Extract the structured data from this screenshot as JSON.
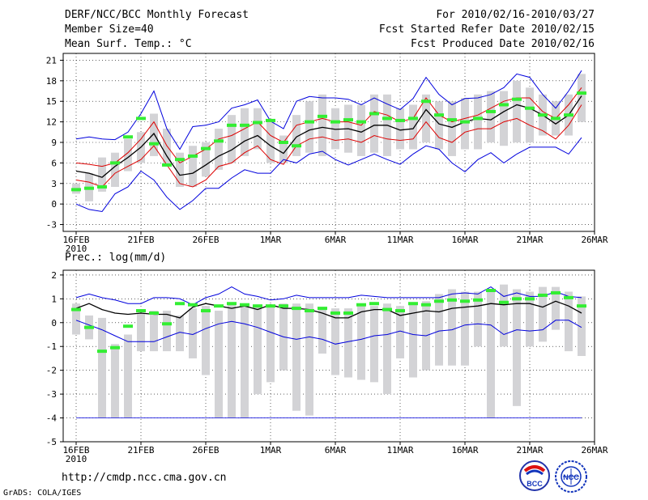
{
  "header": {
    "title": "DERF/NCC/BCC Monthly Forecast",
    "member": "Member Size=40",
    "variable": "Mean Surf. Temp.: °C",
    "period": "For 2010/02/16-2010/03/27",
    "started": "Fcst Started Refer Date 2010/02/15",
    "produced": "Fcst Produced Date 2010/02/16"
  },
  "footer": {
    "url": "http://cmdp.ncc.cma.gov.cn",
    "grads": "GrADS: COLA/IGES",
    "logo1": "BCC",
    "logo2": "NCC"
  },
  "colors": {
    "max_min": "#0000dd",
    "spread": "#dd0000",
    "mean": "#000000",
    "bar": "#d3d3d6",
    "obs": "#33ee33",
    "grid": "#000000"
  },
  "chart_data": [
    {
      "type": "line",
      "title": "Mean Surf. Temp.: °C",
      "x_tick_labels": [
        "16FEB",
        "21FEB",
        "26FEB",
        "1MAR",
        "6MAR",
        "11MAR",
        "16MAR",
        "21MAR",
        "26MAR"
      ],
      "x_year_label": "2010",
      "days": 40,
      "ylim": [
        -4,
        22
      ],
      "yticks": [
        -3,
        0,
        3,
        6,
        9,
        12,
        15,
        18,
        21
      ],
      "series": [
        {
          "name": "max",
          "values": [
            9.5,
            9.8,
            9.5,
            9.4,
            10.5,
            13.2,
            16.5,
            11,
            8,
            11.3,
            11.5,
            12,
            14,
            14.5,
            15.2,
            12.1,
            11,
            15,
            15.7,
            15.5,
            15.5,
            15.3,
            14.5,
            15.5,
            14.6,
            13.8,
            15.4,
            18.5,
            16,
            14.5,
            15.4,
            15.5,
            16,
            17,
            19,
            18.5,
            16,
            14,
            16.5,
            19.5
          ]
        },
        {
          "name": "spread_upper",
          "values": [
            6,
            5.8,
            5.5,
            6,
            7.5,
            9.5,
            12,
            8.5,
            6,
            7,
            8,
            9.5,
            10,
            11,
            12,
            10,
            9,
            11.5,
            12,
            12.5,
            12,
            12,
            11.5,
            13.5,
            13,
            12,
            12.5,
            15.5,
            13,
            12,
            12.5,
            13,
            14,
            15,
            15.5,
            15.5,
            13.5,
            12.5,
            14.5,
            17
          ]
        },
        {
          "name": "mean",
          "values": [
            4.8,
            4.5,
            3.9,
            5.5,
            6.8,
            8.3,
            10.3,
            7,
            4.2,
            4.5,
            5.7,
            7,
            7.9,
            9.2,
            10,
            8.5,
            7.4,
            9.8,
            10.8,
            11.2,
            10.9,
            11,
            10.5,
            11.5,
            11.5,
            10.8,
            11,
            13.8,
            11.7,
            11.2,
            12,
            12.5,
            12.3,
            13.5,
            14.5,
            14,
            13,
            11.7,
            13,
            15.8
          ]
        },
        {
          "name": "spread_lower",
          "values": [
            3.5,
            3.2,
            2.5,
            4.5,
            5.5,
            6.5,
            8.5,
            5.7,
            3,
            2.5,
            3.5,
            5.5,
            6,
            7.5,
            8.5,
            6.5,
            5.8,
            8.5,
            9.5,
            9.8,
            9.3,
            9.5,
            9,
            10,
            9.5,
            9.3,
            9.5,
            12,
            9.7,
            9,
            10.5,
            11,
            11,
            12,
            12.5,
            11.5,
            10.7,
            9.5,
            11.5,
            14.5
          ]
        },
        {
          "name": "min",
          "values": [
            0,
            -0.8,
            -1.1,
            1.5,
            2.5,
            4.8,
            3.5,
            1,
            -0.8,
            0.5,
            2.3,
            2.3,
            3.8,
            5,
            4.5,
            4.5,
            6.5,
            6,
            7.3,
            7.7,
            6.5,
            5.7,
            6.5,
            7.3,
            6.5,
            5.8,
            7.3,
            8.5,
            8,
            6,
            4.7,
            6.5,
            7.5,
            6,
            7.3,
            8.3,
            8.3,
            8.3,
            7.3,
            9.7
          ]
        }
      ],
      "bars": [
        {
          "lo": 1.5,
          "hi": 3
        },
        {
          "lo": 0.4,
          "hi": 4.5
        },
        {
          "lo": 1.8,
          "hi": 6.8
        },
        {
          "lo": 2.5,
          "hi": 7.5
        },
        {
          "lo": 4.8,
          "hi": 9.5
        },
        {
          "lo": 6,
          "hi": 10.5
        },
        {
          "lo": 7,
          "hi": 13.2
        },
        {
          "lo": 5.5,
          "hi": 11
        },
        {
          "lo": 2.5,
          "hi": 7.5
        },
        {
          "lo": 2.5,
          "hi": 8.5
        },
        {
          "lo": 4,
          "hi": 9
        },
        {
          "lo": 5,
          "hi": 11
        },
        {
          "lo": 6,
          "hi": 13
        },
        {
          "lo": 7,
          "hi": 14
        },
        {
          "lo": 8,
          "hi": 14
        },
        {
          "lo": 6,
          "hi": 12
        },
        {
          "lo": 6,
          "hi": 10
        },
        {
          "lo": 7,
          "hi": 13
        },
        {
          "lo": 7.5,
          "hi": 15
        },
        {
          "lo": 7,
          "hi": 16
        },
        {
          "lo": 8,
          "hi": 14
        },
        {
          "lo": 7.5,
          "hi": 14.5
        },
        {
          "lo": 7,
          "hi": 14.5
        },
        {
          "lo": 7.5,
          "hi": 16
        },
        {
          "lo": 7,
          "hi": 16
        },
        {
          "lo": 8,
          "hi": 14
        },
        {
          "lo": 8,
          "hi": 14.5
        },
        {
          "lo": 9,
          "hi": 16
        },
        {
          "lo": 8,
          "hi": 15
        },
        {
          "lo": 7,
          "hi": 15
        },
        {
          "lo": 8,
          "hi": 15.5
        },
        {
          "lo": 8,
          "hi": 16
        },
        {
          "lo": 9,
          "hi": 16.5
        },
        {
          "lo": 8.5,
          "hi": 16.5
        },
        {
          "lo": 9,
          "hi": 18
        },
        {
          "lo": 9,
          "hi": 17
        },
        {
          "lo": 10,
          "hi": 16
        },
        {
          "lo": 10,
          "hi": 15
        },
        {
          "lo": 10,
          "hi": 16
        },
        {
          "lo": 12,
          "hi": 19
        }
      ],
      "observed": [
        2.1,
        2.3,
        2.5,
        6,
        9.8,
        12.5,
        8.8,
        5.7,
        6.5,
        7,
        8.1,
        9.2,
        11.5,
        11.5,
        11.9,
        12.2,
        9,
        8.5,
        12,
        12.8,
        12,
        12.3,
        12,
        13.2,
        12.5,
        12.2,
        12.5,
        15,
        13,
        12.3,
        12,
        12.5,
        13.5,
        14.5,
        15.3,
        14,
        13,
        12.5,
        13,
        16.2
      ]
    },
    {
      "type": "line",
      "title": "Prec.: log(mm/d)",
      "x_tick_labels": [
        "16FEB",
        "21FEB",
        "26FEB",
        "1MAR",
        "6MAR",
        "11MAR",
        "16MAR",
        "21MAR",
        "26MAR"
      ],
      "x_year_label": "2010",
      "days": 40,
      "ylim": [
        -5,
        2.2
      ],
      "yticks": [
        -5,
        -4,
        -3,
        -2,
        -1,
        0,
        1,
        2
      ],
      "series": [
        {
          "name": "max",
          "values": [
            1.05,
            1.2,
            1.05,
            0.95,
            0.8,
            0.8,
            1.05,
            1.05,
            1,
            0.75,
            1.05,
            1.2,
            1.5,
            1.2,
            1.1,
            0.95,
            1,
            1.15,
            1.05,
            1.05,
            1.05,
            1.05,
            1.15,
            1.1,
            1.05,
            1.05,
            1.05,
            1.05,
            1.05,
            1.2,
            1.25,
            1.2,
            1.5,
            1.1,
            1.25,
            1.1,
            1.1,
            1.3,
            1.1,
            1.05
          ]
        },
        {
          "name": "mean",
          "values": [
            0.6,
            0.8,
            0.55,
            0.4,
            0.35,
            0.4,
            0.35,
            0.35,
            0.2,
            0.65,
            0.8,
            0.7,
            0.6,
            0.7,
            0.55,
            0.75,
            0.6,
            0.6,
            0.55,
            0.4,
            0.2,
            0.2,
            0.45,
            0.55,
            0.55,
            0.3,
            0.4,
            0.5,
            0.45,
            0.6,
            0.65,
            0.7,
            0.8,
            0.75,
            0.8,
            0.8,
            0.65,
            0.9,
            0.7,
            0.4
          ]
        },
        {
          "name": "min",
          "values": [
            0.1,
            -0.1,
            -0.3,
            -0.55,
            -0.8,
            -0.8,
            -0.8,
            -0.6,
            -0.4,
            -0.5,
            -0.25,
            -0.05,
            0.05,
            -0.05,
            -0.2,
            -0.4,
            -0.6,
            -0.7,
            -0.6,
            -0.7,
            -0.9,
            -0.8,
            -0.7,
            -0.55,
            -0.5,
            -0.35,
            -0.5,
            -0.55,
            -0.35,
            -0.3,
            -0.1,
            -0.05,
            -0.1,
            -0.5,
            -0.3,
            -0.35,
            -0.3,
            0.1,
            0.1,
            -0.2
          ]
        },
        {
          "name": "floor",
          "values": [
            -4,
            -4,
            -4,
            -4,
            -4,
            -4,
            -4,
            -4,
            -4,
            -4,
            -4,
            -4,
            -4,
            -4,
            -4,
            -4,
            -4,
            -4,
            -4,
            -4,
            -4,
            -4,
            -4,
            -4,
            -4,
            -4,
            -4,
            -4,
            -4,
            -4,
            -4,
            -4,
            -4,
            -4,
            -4,
            -4,
            -4,
            -4,
            -4,
            -4
          ]
        }
      ],
      "bars": [
        {
          "lo": -0.5,
          "hi": 0.8
        },
        {
          "lo": -0.7,
          "hi": 0.3
        },
        {
          "lo": -4,
          "hi": 0.2
        },
        {
          "lo": -4,
          "hi": -0.9
        },
        {
          "lo": -4,
          "hi": -0.5
        },
        {
          "lo": -1.2,
          "hi": 0.4
        },
        {
          "lo": -1.2,
          "hi": 0.5
        },
        {
          "lo": -1.2,
          "hi": 0.5
        },
        {
          "lo": -1.2,
          "hi": 0.3
        },
        {
          "lo": -1.5,
          "hi": 0.6
        },
        {
          "lo": -2.2,
          "hi": 0.7
        },
        {
          "lo": -4,
          "hi": 0.5
        },
        {
          "lo": -4,
          "hi": 0.8
        },
        {
          "lo": -4,
          "hi": 0.8
        },
        {
          "lo": -3,
          "hi": 0.7
        },
        {
          "lo": -2.5,
          "hi": 0.7
        },
        {
          "lo": -2,
          "hi": 0.8
        },
        {
          "lo": -3.7,
          "hi": 0.8
        },
        {
          "lo": -3.9,
          "hi": 0.8
        },
        {
          "lo": -1.3,
          "hi": 0.6
        },
        {
          "lo": -2.2,
          "hi": 0.6
        },
        {
          "lo": -2.3,
          "hi": 0.6
        },
        {
          "lo": -2.4,
          "hi": 0.8
        },
        {
          "lo": -2.5,
          "hi": 0.7
        },
        {
          "lo": -3,
          "hi": 0.8
        },
        {
          "lo": -1.5,
          "hi": 0.7
        },
        {
          "lo": -2.3,
          "hi": 0.8
        },
        {
          "lo": -2,
          "hi": 0.9
        },
        {
          "lo": -1.8,
          "hi": 1.2
        },
        {
          "lo": -1.8,
          "hi": 1.4
        },
        {
          "lo": -1.8,
          "hi": 1.3
        },
        {
          "lo": -1,
          "hi": 1.3
        },
        {
          "lo": -4,
          "hi": 1.3
        },
        {
          "lo": -1,
          "hi": 1.6
        },
        {
          "lo": -3.5,
          "hi": 1.4
        },
        {
          "lo": -1,
          "hi": 1.3
        },
        {
          "lo": -0.8,
          "hi": 1.5
        },
        {
          "lo": -0.3,
          "hi": 1.5
        },
        {
          "lo": -1.2,
          "hi": 1.3
        },
        {
          "lo": -1.4,
          "hi": 1.1
        }
      ],
      "observed": [
        0.55,
        -0.2,
        -1.2,
        -1.05,
        -0.15,
        0.5,
        0.4,
        -0.05,
        0.8,
        0.75,
        0.5,
        0.7,
        0.8,
        0.75,
        0.7,
        0.7,
        0.7,
        0.6,
        0.5,
        0.6,
        0.4,
        0.4,
        0.75,
        0.8,
        0.55,
        0.5,
        0.8,
        0.75,
        0.9,
        0.95,
        0.9,
        0.95,
        1.35,
        0.85,
        1,
        1,
        1.15,
        1.25,
        1.05,
        0.7
      ]
    }
  ]
}
